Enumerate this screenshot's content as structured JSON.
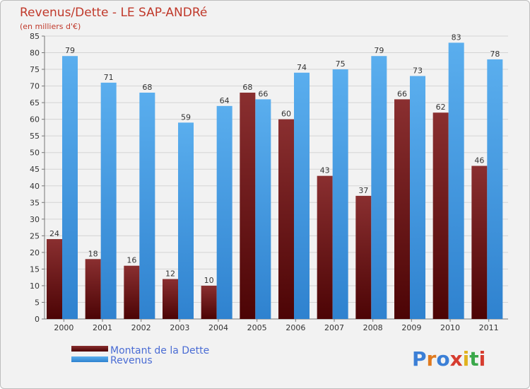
{
  "chart_data": {
    "type": "bar",
    "title": "Revenus/Dette - LE SAP-ANDRé",
    "subtitle": "(en milliers d'€)",
    "categories": [
      "2000",
      "2001",
      "2002",
      "2003",
      "2004",
      "2005",
      "2006",
      "2007",
      "2008",
      "2009",
      "2010",
      "2011"
    ],
    "series": [
      {
        "name": "Montant de la Dette",
        "color": "#6b0f10",
        "values": [
          24,
          18,
          16,
          12,
          10,
          68,
          60,
          43,
          37,
          66,
          62,
          46
        ]
      },
      {
        "name": "Revenus",
        "color": "#3f96e0",
        "values": [
          79,
          71,
          68,
          59,
          64,
          66,
          74,
          75,
          79,
          73,
          83,
          78
        ]
      }
    ],
    "ylim": [
      0,
      85
    ],
    "ytick_step": 5,
    "grid": true,
    "legend": "bottom-left"
  },
  "logo": {
    "text": "Proxiti",
    "letter_colors": [
      "#3b7fd6",
      "#e07a1f",
      "#3b7fd6",
      "#d63c2f",
      "#e0b21f",
      "#3aa84a",
      "#d63c2f"
    ]
  }
}
